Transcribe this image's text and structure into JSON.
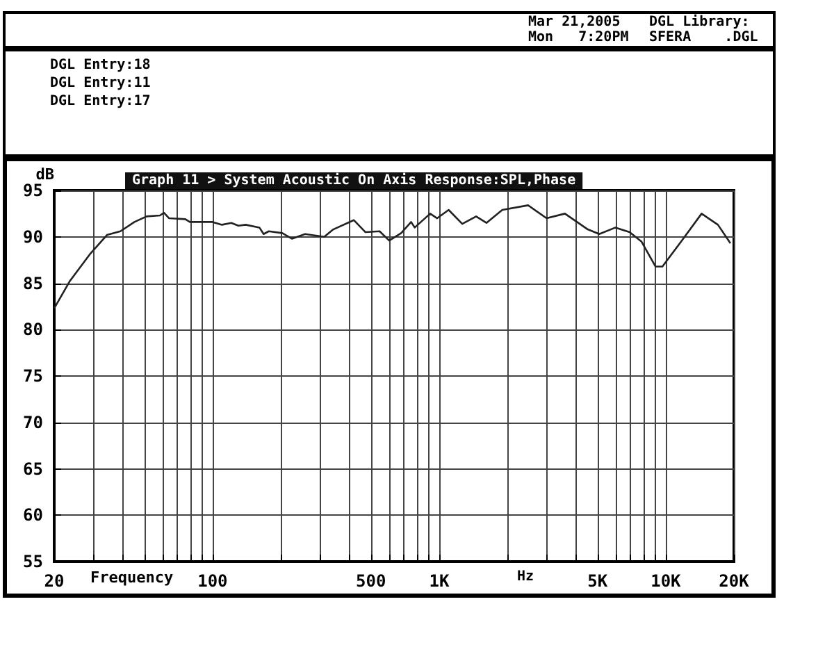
{
  "chart_data": {
    "type": "line",
    "title": "Graph 11 > System Acoustic On Axis Response:SPL,Phase",
    "xlabel": "Frequency",
    "ylabel": "dB",
    "annotations": [
      "DGL Entry:18",
      "DGL Entry:11",
      "DGL Entry:17",
      "Mar 21,2005",
      "Mon   7:20PM",
      "DGL Library:",
      "SFERA    .DGL",
      "Hz"
    ],
    "x": [
      20,
      23.4,
      28.9,
      34.2,
      39.2,
      45.2,
      51.1,
      58.6,
      61,
      64.3,
      75.8,
      79.4,
      100,
      110,
      121,
      130,
      140,
      161,
      168,
      177,
      203,
      224,
      256,
      311,
      341,
      420,
      473,
      546,
      602,
      680,
      752,
      780,
      913,
      980,
      1101,
      1265,
      1456,
      1617,
      1900,
      2470,
      2980,
      3590,
      4530,
      5090,
      6000,
      6930,
      7810,
      9010,
      9670,
      11700,
      14400,
      17000,
      19300
    ],
    "series": [
      {
        "color": "#222222",
        "values": [
          82.3,
          85.2,
          88.2,
          90.2,
          90.6,
          91.6,
          92.2,
          92.3,
          92.6,
          92.0,
          91.9,
          91.6,
          91.6,
          91.3,
          91.5,
          91.2,
          91.3,
          91.0,
          90.3,
          90.6,
          90.4,
          89.8,
          90.3,
          90.0,
          90.8,
          91.8,
          90.5,
          90.6,
          89.6,
          90.4,
          91.6,
          91.0,
          92.5,
          92.0,
          92.9,
          91.4,
          92.2,
          91.5,
          92.9,
          93.4,
          92.0,
          92.5,
          90.8,
          90.3,
          91.0,
          90.5,
          89.5,
          86.8,
          86.8,
          89.5,
          92.5,
          91.3,
          89.3
        ]
      }
    ],
    "log": "x",
    "xlim": [
      20,
      20000
    ],
    "ylim": [
      55,
      95
    ],
    "yticks": [
      55,
      60,
      65,
      70,
      75,
      80,
      85,
      90,
      95
    ],
    "xticks": [
      20,
      {
        "value": 30,
        "label": null
      },
      {
        "value": 40,
        "label": null
      },
      {
        "value": 50,
        "label": null
      },
      {
        "value": 60,
        "label": null
      },
      {
        "value": 70,
        "label": null
      },
      {
        "value": 80,
        "label": null
      },
      {
        "value": 90,
        "label": null
      },
      100,
      {
        "value": 200,
        "label": null
      },
      {
        "value": 300,
        "label": null
      },
      {
        "value": 400,
        "label": null
      },
      500,
      {
        "value": 600,
        "label": null
      },
      {
        "value": 700,
        "label": null
      },
      {
        "value": 800,
        "label": null
      },
      {
        "value": 900,
        "label": null
      },
      {
        "value": 1000,
        "label": "1K"
      },
      {
        "value": 2000,
        "label": null
      },
      {
        "value": 3000,
        "label": null
      },
      {
        "value": 4000,
        "label": null
      },
      {
        "value": 5000,
        "label": "5K"
      },
      {
        "value": 6000,
        "label": null
      },
      {
        "value": 7000,
        "label": null
      },
      {
        "value": 8000,
        "label": null
      },
      {
        "value": 9000,
        "label": null
      },
      {
        "value": 10000,
        "label": "10K"
      },
      {
        "value": 20000,
        "label": "20K"
      }
    ],
    "grid": true,
    "marker": "none",
    "line_style": "solid"
  }
}
